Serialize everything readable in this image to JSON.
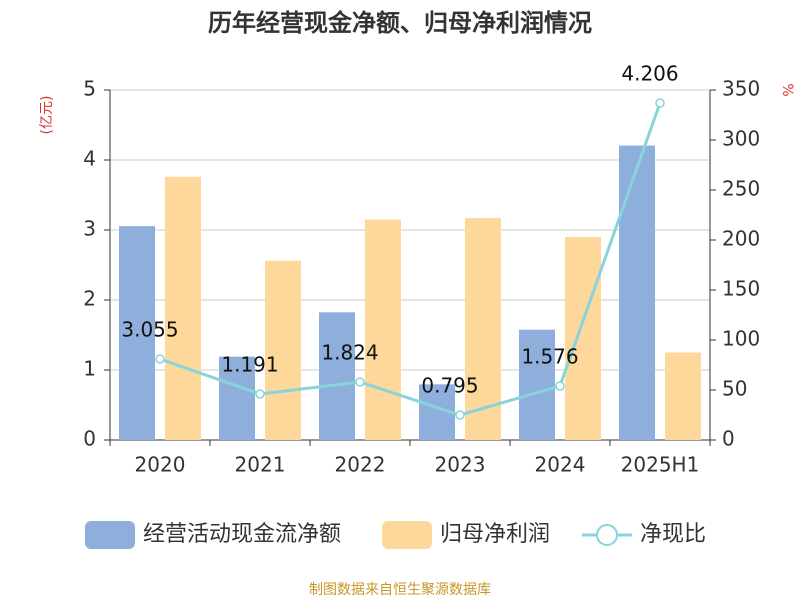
{
  "chart_data": {
    "type": "bar-line",
    "title": "历年经营现金净额、归母净利润情况",
    "y_label": "(亿元)",
    "y2_label": "%",
    "source": "制图数据来自恒生聚源数据库",
    "categories": [
      "2020",
      "2021",
      "2022",
      "2023",
      "2024",
      "2025H1"
    ],
    "series": [
      {
        "name": "经营活动现金流净额",
        "type": "bar",
        "color": "#8eaedb",
        "values": [
          3.055,
          1.191,
          1.824,
          0.795,
          1.576,
          4.206
        ],
        "labels": true
      },
      {
        "name": "归母净利润",
        "type": "bar",
        "color": "#fdd89a",
        "values": [
          3.76,
          2.56,
          3.15,
          3.17,
          2.9,
          1.25
        ]
      },
      {
        "name": "净现比",
        "type": "line",
        "axis": "y2",
        "color": "#88d3dc",
        "values": [
          81,
          46,
          58,
          25,
          54,
          337
        ]
      }
    ],
    "ylim": [
      0,
      5
    ],
    "yticks": [
      0,
      1,
      2,
      3,
      4,
      5
    ],
    "y2lim": [
      0,
      350
    ],
    "y2ticks": [
      0,
      50,
      100,
      150,
      200,
      250,
      300,
      350
    ],
    "grid": true
  }
}
